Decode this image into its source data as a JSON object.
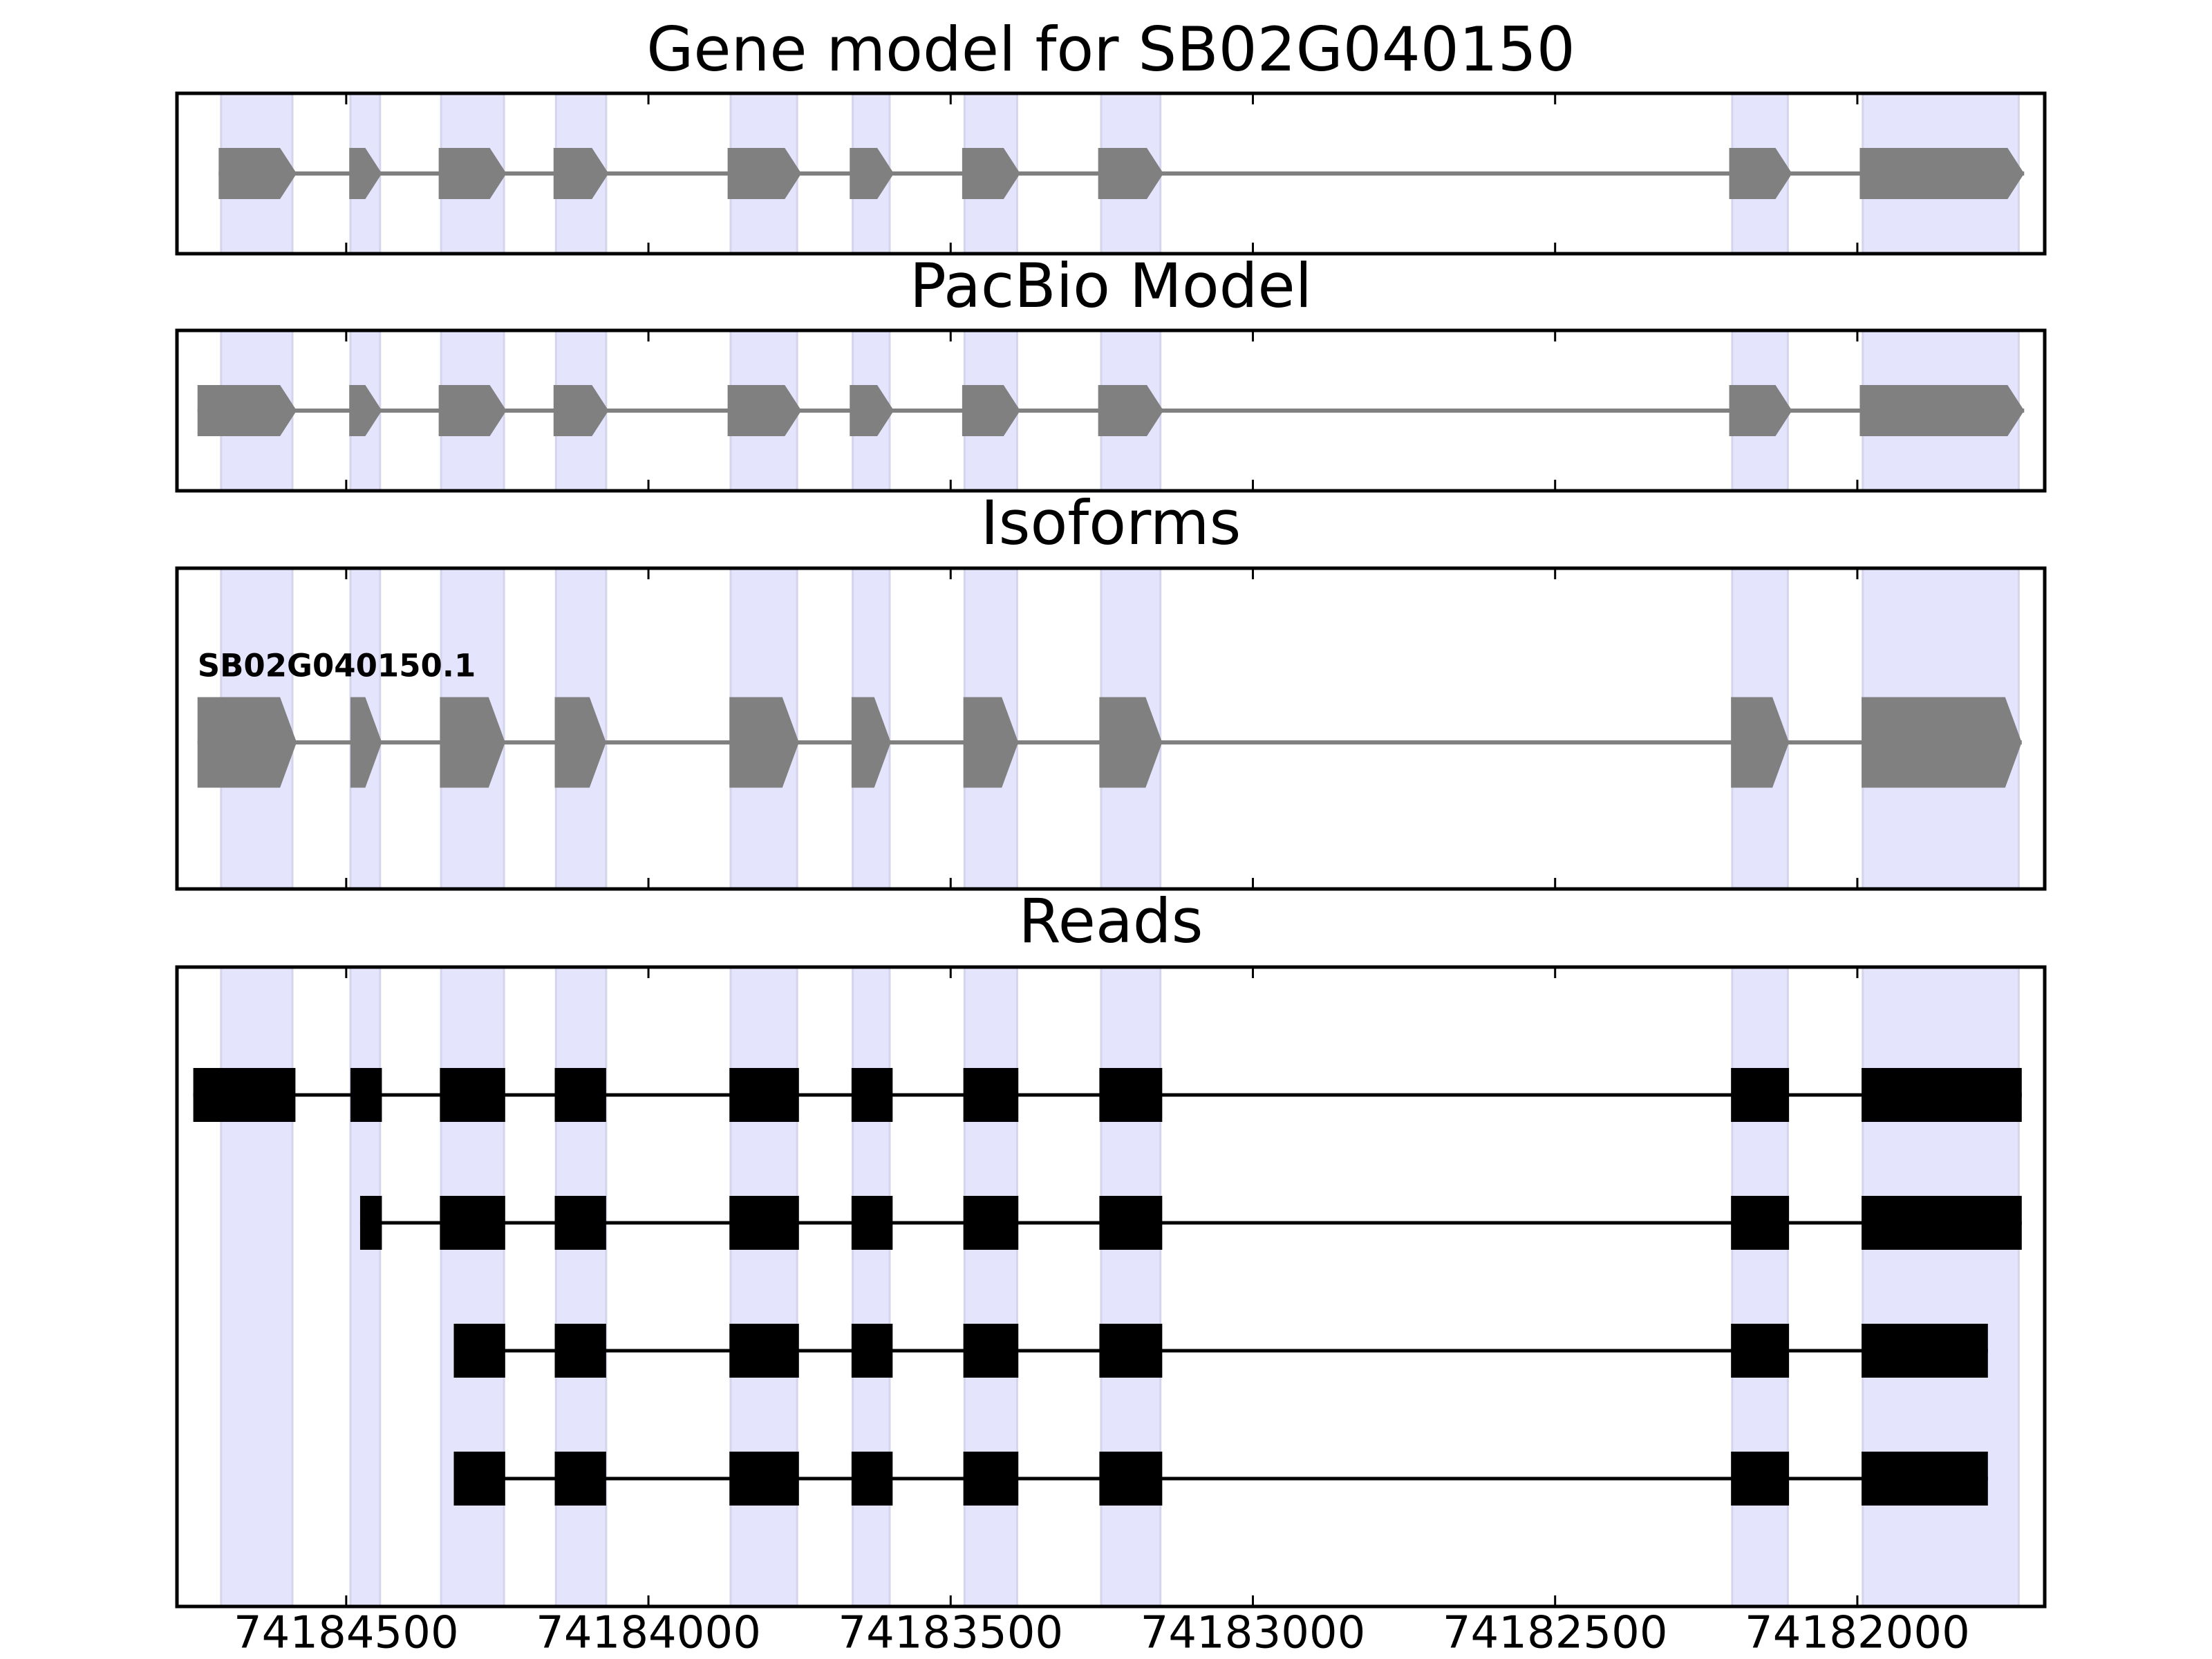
{
  "chart_data": [
    {
      "type": "gene-track",
      "title": "Gene model for SB02G040150",
      "style": "arrow",
      "color": "#808080",
      "xlim": [
        74184780,
        74181690
      ],
      "xticks": [
        74184500,
        74184000,
        74183500,
        74183000,
        74182500,
        74182000
      ],
      "show_tick_labels": false,
      "highlight_color": "#e4e4fc",
      "highlights": [
        [
          74184707,
          74184589
        ],
        [
          74184493,
          74184444
        ],
        [
          74184343,
          74184239
        ],
        [
          74184153,
          74184070
        ],
        [
          74183864,
          74183754
        ],
        [
          74183662,
          74183601
        ],
        [
          74183477,
          74183390
        ],
        [
          74183251,
          74183153
        ],
        [
          74182207,
          74182115
        ],
        [
          74181991,
          74181733
        ]
      ],
      "tracks": [
        {
          "exons": [
            [
              74184711,
              74184582
            ],
            [
              74184495,
              74184441
            ],
            [
              74184347,
              74184235
            ],
            [
              74184157,
              74184066
            ],
            [
              74183869,
              74183747
            ],
            [
              74183667,
              74183594
            ],
            [
              74183481,
              74183385
            ],
            [
              74183256,
              74183148
            ],
            [
              74182212,
              74182108
            ],
            [
              74181996,
              74181724
            ]
          ]
        }
      ]
    },
    {
      "type": "gene-track",
      "title": "PacBio Model",
      "style": "arrow",
      "color": "#808080",
      "xlim": [
        74184780,
        74181690
      ],
      "xticks": [
        74184500,
        74184000,
        74183500,
        74183000,
        74182500,
        74182000
      ],
      "show_tick_labels": false,
      "highlight_color": "#e4e4fc",
      "highlights": [
        [
          74184707,
          74184589
        ],
        [
          74184493,
          74184444
        ],
        [
          74184343,
          74184239
        ],
        [
          74184153,
          74184070
        ],
        [
          74183864,
          74183754
        ],
        [
          74183662,
          74183601
        ],
        [
          74183477,
          74183390
        ],
        [
          74183251,
          74183153
        ],
        [
          74182207,
          74182115
        ],
        [
          74181991,
          74181733
        ]
      ],
      "tracks": [
        {
          "exons": [
            [
              74184746,
              74184582
            ],
            [
              74184495,
              74184441
            ],
            [
              74184347,
              74184235
            ],
            [
              74184157,
              74184066
            ],
            [
              74183869,
              74183747
            ],
            [
              74183667,
              74183594
            ],
            [
              74183481,
              74183385
            ],
            [
              74183256,
              74183148
            ],
            [
              74182212,
              74182108
            ],
            [
              74181996,
              74181724
            ]
          ]
        }
      ]
    },
    {
      "type": "gene-track",
      "title": "Isoforms",
      "style": "arrow",
      "color": "#808080",
      "xlim": [
        74184780,
        74181690
      ],
      "xticks": [
        74184500,
        74184000,
        74183500,
        74183000,
        74182500,
        74182000
      ],
      "show_tick_labels": false,
      "highlight_color": "#e4e4fc",
      "highlights": [
        [
          74184707,
          74184589
        ],
        [
          74184493,
          74184444
        ],
        [
          74184343,
          74184239
        ],
        [
          74184153,
          74184070
        ],
        [
          74183864,
          74183754
        ],
        [
          74183662,
          74183601
        ],
        [
          74183477,
          74183390
        ],
        [
          74183251,
          74183153
        ],
        [
          74182207,
          74182115
        ],
        [
          74181991,
          74181733
        ]
      ],
      "tracks": [
        {
          "name": "SB02G040150.1",
          "exons": [
            [
              74184746,
              74184582
            ],
            [
              74184493,
              74184441
            ],
            [
              74184345,
              74184237
            ],
            [
              74184155,
              74184070
            ],
            [
              74183866,
              74183751
            ],
            [
              74183664,
              74183599
            ],
            [
              74183479,
              74183388
            ],
            [
              74183254,
              74183150
            ],
            [
              74182209,
              74182113
            ],
            [
              74181993,
              74181728
            ]
          ]
        }
      ]
    },
    {
      "type": "gene-track",
      "title": "Reads",
      "style": "box",
      "color": "#000000",
      "xlim": [
        74184780,
        74181690
      ],
      "xticks": [
        74184500,
        74184000,
        74183500,
        74183000,
        74182500,
        74182000
      ],
      "show_tick_labels": true,
      "highlight_color": "#e4e4fc",
      "highlights": [
        [
          74184707,
          74184589
        ],
        [
          74184493,
          74184444
        ],
        [
          74184343,
          74184239
        ],
        [
          74184153,
          74184070
        ],
        [
          74183864,
          74183754
        ],
        [
          74183662,
          74183601
        ],
        [
          74183477,
          74183390
        ],
        [
          74183251,
          74183153
        ],
        [
          74182207,
          74182115
        ],
        [
          74181991,
          74181733
        ]
      ],
      "tracks": [
        {
          "exons": [
            [
              74184753,
              74184584
            ],
            [
              74184493,
              74184441
            ],
            [
              74184345,
              74184237
            ],
            [
              74184155,
              74184070
            ],
            [
              74183866,
              74183751
            ],
            [
              74183664,
              74183596
            ],
            [
              74183479,
              74183388
            ],
            [
              74183254,
              74183150
            ],
            [
              74182209,
              74182113
            ],
            [
              74181993,
              74181728
            ]
          ]
        },
        {
          "exons": [
            [
              74184477,
              74184441
            ],
            [
              74184345,
              74184237
            ],
            [
              74184155,
              74184070
            ],
            [
              74183866,
              74183751
            ],
            [
              74183664,
              74183596
            ],
            [
              74183479,
              74183388
            ],
            [
              74183254,
              74183150
            ],
            [
              74182209,
              74182113
            ],
            [
              74181993,
              74181728
            ]
          ]
        },
        {
          "exons": [
            [
              74184322,
              74184237
            ],
            [
              74184155,
              74184070
            ],
            [
              74183866,
              74183751
            ],
            [
              74183664,
              74183596
            ],
            [
              74183479,
              74183388
            ],
            [
              74183254,
              74183150
            ],
            [
              74182209,
              74182113
            ],
            [
              74181993,
              74181784
            ]
          ]
        },
        {
          "exons": [
            [
              74184322,
              74184237
            ],
            [
              74184155,
              74184070
            ],
            [
              74183866,
              74183751
            ],
            [
              74183664,
              74183596
            ],
            [
              74183479,
              74183388
            ],
            [
              74183254,
              74183150
            ],
            [
              74182209,
              74182113
            ],
            [
              74181993,
              74181784
            ]
          ]
        }
      ]
    }
  ]
}
